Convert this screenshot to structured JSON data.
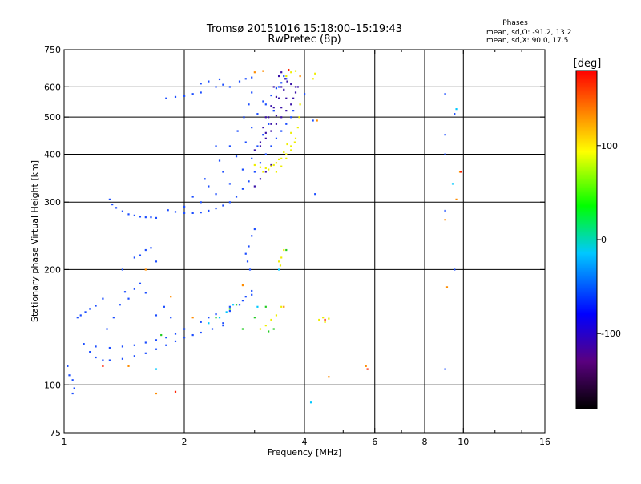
{
  "chart_data": {
    "type": "scatter",
    "title": "Tromsø 20151016 15:18:00–15:19:43",
    "subtitle": "RwPretec (8p)",
    "info": {
      "heading": "Phases",
      "line1": "mean, sd,O: -91.2, 13.2",
      "line2": "mean, sd,X:  90.0, 17.5"
    },
    "xlabel": "Frequency [MHz]",
    "ylabel": "Stationary phase Virtual Height [km]",
    "x_scale": "log",
    "y_scale": "log",
    "xlim": [
      1,
      16
    ],
    "ylim": [
      75,
      750
    ],
    "x_ticks": [
      {
        "v": 1,
        "label": "1"
      },
      {
        "v": 2,
        "label": "2"
      },
      {
        "v": 4,
        "label": "4"
      },
      {
        "v": 6,
        "label": "6"
      },
      {
        "v": 8,
        "label": "8"
      },
      {
        "v": 10,
        "label": "10"
      },
      {
        "v": 16,
        "label": "16"
      }
    ],
    "y_ticks": [
      {
        "v": 75,
        "label": "75"
      },
      {
        "v": 100,
        "label": "100"
      },
      {
        "v": 200,
        "label": "200"
      },
      {
        "v": 300,
        "label": "300"
      },
      {
        "v": 400,
        "label": "400"
      },
      {
        "v": 500,
        "label": "500"
      },
      {
        "v": 600,
        "label": "600"
      },
      {
        "v": 750,
        "label": "750"
      }
    ],
    "x_gridlines": [
      2,
      4,
      6,
      8,
      10
    ],
    "y_gridlines": [
      100,
      200,
      300,
      400,
      500,
      600
    ],
    "grid": true,
    "colorbar": {
      "label": "[deg]",
      "range": [
        -180,
        180
      ],
      "ticks": [
        {
          "v": 100,
          "label": "100"
        },
        {
          "v": 0,
          "label": "0"
        },
        {
          "v": -100,
          "label": "-100"
        }
      ],
      "colors": [
        "#000000",
        "#5a007f",
        "#0000ff",
        "#00c8ff",
        "#00ff00",
        "#ffff00",
        "#ff8000",
        "#ff0000"
      ]
    },
    "series": [
      {
        "points": [
          [
            1.02,
            112
          ],
          [
            1.03,
            106
          ],
          [
            1.05,
            103
          ],
          [
            1.06,
            98
          ],
          [
            1.05,
            95
          ],
          [
            1.08,
            150
          ],
          [
            1.1,
            152
          ],
          [
            1.13,
            155
          ],
          [
            1.16,
            158
          ],
          [
            1.2,
            161
          ],
          [
            1.25,
            168
          ],
          [
            1.12,
            128
          ],
          [
            1.16,
            122
          ],
          [
            1.2,
            118
          ],
          [
            1.25,
            116
          ],
          [
            1.3,
            116
          ],
          [
            1.4,
            117
          ],
          [
            1.5,
            119
          ],
          [
            1.6,
            121
          ],
          [
            1.7,
            124
          ],
          [
            1.8,
            127
          ],
          [
            1.9,
            130
          ],
          [
            2.0,
            133
          ],
          [
            2.1,
            135
          ],
          [
            2.2,
            137
          ],
          [
            2.35,
            140
          ],
          [
            2.5,
            143
          ],
          [
            1.2,
            126
          ],
          [
            1.3,
            125
          ],
          [
            1.4,
            126
          ],
          [
            1.5,
            127
          ],
          [
            1.6,
            129
          ],
          [
            1.7,
            131
          ],
          [
            1.8,
            133
          ],
          [
            1.9,
            136
          ],
          [
            2.0,
            140
          ],
          [
            2.2,
            146
          ],
          [
            2.4,
            153
          ],
          [
            2.6,
            160
          ],
          [
            2.8,
            166
          ],
          [
            2.95,
            172
          ],
          [
            1.28,
            140
          ],
          [
            1.33,
            150
          ],
          [
            1.38,
            162
          ],
          [
            1.42,
            175
          ],
          [
            1.45,
            168
          ],
          [
            1.5,
            178
          ],
          [
            1.55,
            184
          ],
          [
            1.6,
            174
          ],
          [
            1.7,
            152
          ],
          [
            1.78,
            160
          ],
          [
            1.85,
            150
          ],
          [
            2.3,
            150
          ],
          [
            2.5,
            145
          ],
          [
            2.6,
            156
          ],
          [
            2.75,
            162
          ],
          [
            2.85,
            170
          ],
          [
            2.95,
            176
          ],
          [
            1.3,
            305
          ],
          [
            1.32,
            296
          ],
          [
            1.35,
            290
          ],
          [
            1.4,
            284
          ],
          [
            1.45,
            279
          ],
          [
            1.5,
            277
          ],
          [
            1.55,
            275
          ],
          [
            1.6,
            274
          ],
          [
            1.65,
            274
          ],
          [
            1.7,
            273
          ],
          [
            1.4,
            200
          ],
          [
            1.5,
            215
          ],
          [
            1.55,
            218
          ],
          [
            1.6,
            225
          ],
          [
            1.65,
            228
          ],
          [
            1.7,
            210
          ],
          [
            1.82,
            286
          ],
          [
            1.9,
            283
          ],
          [
            2.0,
            281
          ],
          [
            2.1,
            281
          ],
          [
            2.2,
            282
          ],
          [
            2.3,
            285
          ],
          [
            2.4,
            289
          ],
          [
            2.5,
            294
          ],
          [
            2.6,
            300
          ],
          [
            2.7,
            310
          ],
          [
            2.8,
            325
          ],
          [
            2.9,
            340
          ],
          [
            3.0,
            360
          ],
          [
            3.1,
            380
          ],
          [
            3.2,
            400
          ],
          [
            3.3,
            420
          ],
          [
            3.4,
            440
          ],
          [
            3.5,
            460
          ],
          [
            3.6,
            480
          ],
          [
            3.7,
            500
          ],
          [
            3.75,
            520
          ],
          [
            2.0,
            292
          ],
          [
            2.2,
            300
          ],
          [
            2.4,
            315
          ],
          [
            2.6,
            335
          ],
          [
            2.8,
            365
          ],
          [
            2.95,
            390
          ],
          [
            3.05,
            420
          ],
          [
            3.15,
            450
          ],
          [
            3.25,
            480
          ],
          [
            3.35,
            520
          ],
          [
            3.45,
            560
          ],
          [
            2.1,
            310
          ],
          [
            2.3,
            330
          ],
          [
            2.5,
            360
          ],
          [
            2.7,
            395
          ],
          [
            2.85,
            430
          ],
          [
            2.95,
            470
          ],
          [
            3.05,
            510
          ],
          [
            3.15,
            550
          ],
          [
            2.25,
            345
          ],
          [
            2.45,
            385
          ],
          [
            2.6,
            420
          ],
          [
            2.72,
            460
          ],
          [
            2.82,
            500
          ],
          [
            2.9,
            540
          ],
          [
            2.95,
            580
          ],
          [
            2.6,
            600
          ],
          [
            2.75,
            620
          ],
          [
            2.85,
            630
          ],
          [
            2.95,
            635
          ],
          [
            2.5,
            608
          ],
          [
            2.4,
            600
          ],
          [
            2.2,
            612
          ],
          [
            2.3,
            620
          ],
          [
            2.45,
            628
          ],
          [
            1.8,
            560
          ],
          [
            1.9,
            565
          ],
          [
            2.0,
            568
          ],
          [
            2.1,
            575
          ],
          [
            2.2,
            580
          ],
          [
            2.85,
            220
          ],
          [
            2.9,
            230
          ],
          [
            2.95,
            245
          ],
          [
            3.0,
            255
          ],
          [
            2.88,
            210
          ],
          [
            2.92,
            200
          ],
          [
            3.2,
            540
          ],
          [
            3.3,
            570
          ],
          [
            3.4,
            595
          ],
          [
            3.5,
            615
          ],
          [
            3.6,
            630
          ],
          [
            3.55,
            640
          ],
          [
            3.45,
            600
          ],
          [
            3.35,
            520
          ],
          [
            3.25,
            480
          ],
          [
            3.15,
            450
          ],
          [
            9.0,
            110
          ],
          [
            9.0,
            285
          ],
          [
            9.0,
            400
          ],
          [
            9.0,
            450
          ],
          [
            9.0,
            575
          ],
          [
            9.5,
            200
          ],
          [
            9.5,
            510
          ],
          [
            4.0,
            575
          ],
          [
            4.2,
            490
          ],
          [
            4.25,
            315
          ],
          [
            2.4,
            420
          ]
        ],
        "color": "#1b4dff"
      },
      {
        "points": [
          [
            3.0,
            410
          ],
          [
            3.1,
            420
          ],
          [
            3.2,
            440
          ],
          [
            3.3,
            460
          ],
          [
            3.4,
            480
          ],
          [
            3.5,
            500
          ],
          [
            3.6,
            520
          ],
          [
            3.7,
            540
          ],
          [
            3.75,
            560
          ],
          [
            3.8,
            580
          ],
          [
            3.85,
            600
          ],
          [
            3.1,
            430
          ],
          [
            3.2,
            455
          ],
          [
            3.3,
            480
          ],
          [
            3.4,
            505
          ],
          [
            3.5,
            530
          ],
          [
            3.6,
            560
          ],
          [
            3.15,
            470
          ],
          [
            3.25,
            500
          ],
          [
            3.35,
            530
          ],
          [
            3.45,
            560
          ],
          [
            3.55,
            590
          ],
          [
            3.62,
            620
          ],
          [
            3.2,
            500
          ],
          [
            3.3,
            535
          ],
          [
            3.4,
            565
          ],
          [
            3.5,
            600
          ],
          [
            3.58,
            630
          ],
          [
            3.35,
            600
          ],
          [
            3.45,
            640
          ],
          [
            3.5,
            655
          ],
          [
            3.7,
            610
          ],
          [
            3.8,
            600
          ],
          [
            3.0,
            330
          ],
          [
            3.1,
            345
          ],
          [
            3.2,
            360
          ],
          [
            3.3,
            375
          ]
        ],
        "color": "#3a12a8"
      },
      {
        "points": [
          [
            3.0,
            375
          ],
          [
            3.1,
            370
          ],
          [
            3.2,
            368
          ],
          [
            3.3,
            372
          ],
          [
            3.4,
            380
          ],
          [
            3.5,
            390
          ],
          [
            3.6,
            400
          ],
          [
            3.7,
            420
          ],
          [
            3.8,
            440
          ],
          [
            3.85,
            470
          ],
          [
            3.88,
            500
          ],
          [
            3.9,
            540
          ],
          [
            3.15,
            360
          ],
          [
            3.25,
            365
          ],
          [
            3.35,
            375
          ],
          [
            3.45,
            388
          ],
          [
            3.55,
            405
          ],
          [
            3.62,
            425
          ],
          [
            3.7,
            455
          ],
          [
            3.4,
            360
          ],
          [
            3.5,
            372
          ],
          [
            3.6,
            390
          ],
          [
            3.7,
            410
          ],
          [
            3.78,
            430
          ],
          [
            3.1,
            140
          ],
          [
            3.2,
            143
          ],
          [
            3.3,
            148
          ],
          [
            3.4,
            152
          ],
          [
            3.5,
            160
          ],
          [
            3.45,
            210
          ],
          [
            3.5,
            215
          ],
          [
            3.55,
            225
          ],
          [
            3.48,
            205
          ],
          [
            4.35,
            148
          ],
          [
            4.45,
            150
          ],
          [
            4.6,
            149
          ],
          [
            4.5,
            146
          ],
          [
            3.6,
            640
          ],
          [
            3.7,
            655
          ],
          [
            3.8,
            660
          ],
          [
            4.2,
            630
          ],
          [
            4.25,
            650
          ]
        ],
        "color": "#eeee00"
      },
      {
        "points": [
          [
            2.4,
            150
          ],
          [
            2.6,
            158
          ],
          [
            2.7,
            162
          ],
          [
            3.0,
            150
          ],
          [
            3.25,
            138
          ],
          [
            3.35,
            140
          ],
          [
            3.6,
            225
          ],
          [
            3.2,
            160
          ],
          [
            2.8,
            140
          ],
          [
            1.75,
            135
          ]
        ],
        "color": "#22cc22"
      },
      {
        "points": [
          [
            2.3,
            145
          ],
          [
            2.45,
            150
          ],
          [
            2.55,
            155
          ],
          [
            2.65,
            162
          ],
          [
            3.05,
            160
          ],
          [
            3.45,
            200
          ],
          [
            9.4,
            335
          ],
          [
            9.6,
            525
          ],
          [
            4.15,
            90
          ],
          [
            1.7,
            110
          ]
        ],
        "color": "#00c8ff"
      },
      {
        "points": [
          [
            1.45,
            112
          ],
          [
            1.6,
            200
          ],
          [
            1.7,
            95
          ],
          [
            1.85,
            170
          ],
          [
            2.1,
            150
          ],
          [
            2.8,
            182
          ],
          [
            3.0,
            655
          ],
          [
            3.15,
            660
          ],
          [
            3.9,
            640
          ],
          [
            4.6,
            105
          ],
          [
            5.7,
            112
          ],
          [
            9.0,
            270
          ],
          [
            9.1,
            180
          ],
          [
            9.6,
            305
          ],
          [
            9.8,
            360
          ],
          [
            3.55,
            160
          ],
          [
            4.3,
            490
          ]
        ],
        "color": "#ff8c00"
      },
      {
        "points": [
          [
            1.9,
            96
          ],
          [
            4.5,
            148
          ],
          [
            5.75,
            110
          ],
          [
            9.85,
            360
          ],
          [
            3.65,
            665
          ],
          [
            1.25,
            112
          ]
        ],
        "color": "#ff2200"
      }
    ]
  }
}
